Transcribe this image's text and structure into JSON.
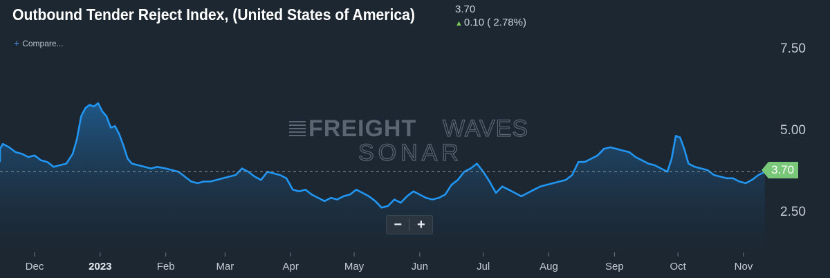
{
  "header": {
    "title": "Outbound Tender Reject Index, (United States of America)",
    "current_value": "3.70",
    "change_value": "0.10",
    "change_pct": "( 2.78%)",
    "change_direction": "up",
    "compare_label": "Compare..."
  },
  "watermark": {
    "brand_bold": "FREIGHT",
    "brand_light": "WAVES",
    "product": "SONAR"
  },
  "zoom": {
    "minus": "−",
    "plus": "+"
  },
  "colors": {
    "background": "#1c2732",
    "line": "#2196f3",
    "area_top": "#1f5a8c",
    "last_value_flag": "#79c87a",
    "up_arrow": "#7ec85a"
  },
  "chart_data": {
    "type": "area",
    "title": "Outbound Tender Reject Index, (United States of America)",
    "xlabel": "",
    "ylabel": "",
    "ylim": [
      1.2,
      9.0
    ],
    "y_ticks": [
      7.5,
      5.0,
      2.5
    ],
    "y_tick_labels": [
      "7.50",
      "5.00",
      "2.50"
    ],
    "x_ticks": [
      "Dec",
      "2023",
      "Feb",
      "Mar",
      "Apr",
      "May",
      "Jun",
      "Jul",
      "Aug",
      "Sep",
      "Oct",
      "Nov"
    ],
    "x_tick_dates": [
      "2022-12-01",
      "2023-01-01",
      "2023-02-01",
      "2023-03-01",
      "2023-04-01",
      "2023-05-01",
      "2023-06-01",
      "2023-07-01",
      "2023-08-01",
      "2023-09-01",
      "2023-10-01",
      "2023-11-01"
    ],
    "last_value": 3.7,
    "last_value_line": "dashed",
    "grid": false,
    "series": [
      {
        "values": [
          [
            "2022-11-10",
            4.0
          ],
          [
            "2022-11-13",
            4.4
          ],
          [
            "2022-11-16",
            4.55
          ],
          [
            "2022-11-19",
            4.45
          ],
          [
            "2022-11-22",
            4.3
          ],
          [
            "2022-11-25",
            4.25
          ],
          [
            "2022-11-28",
            4.15
          ],
          [
            "2022-12-01",
            4.2
          ],
          [
            "2022-12-04",
            4.05
          ],
          [
            "2022-12-07",
            4.0
          ],
          [
            "2022-12-10",
            3.85
          ],
          [
            "2022-12-13",
            3.9
          ],
          [
            "2022-12-16",
            3.95
          ],
          [
            "2022-12-19",
            4.25
          ],
          [
            "2022-12-21",
            4.7
          ],
          [
            "2022-12-23",
            5.4
          ],
          [
            "2022-12-25",
            5.65
          ],
          [
            "2022-12-27",
            5.75
          ],
          [
            "2022-12-29",
            5.7
          ],
          [
            "2022-12-31",
            5.8
          ],
          [
            "2023-01-02",
            5.55
          ],
          [
            "2023-01-04",
            5.4
          ],
          [
            "2023-01-06",
            5.05
          ],
          [
            "2023-01-08",
            5.1
          ],
          [
            "2023-01-10",
            4.85
          ],
          [
            "2023-01-12",
            4.5
          ],
          [
            "2023-01-14",
            4.1
          ],
          [
            "2023-01-16",
            3.95
          ],
          [
            "2023-01-19",
            3.9
          ],
          [
            "2023-01-22",
            3.85
          ],
          [
            "2023-01-25",
            3.8
          ],
          [
            "2023-01-28",
            3.85
          ],
          [
            "2023-02-01",
            3.8
          ],
          [
            "2023-02-04",
            3.75
          ],
          [
            "2023-02-07",
            3.7
          ],
          [
            "2023-02-10",
            3.55
          ],
          [
            "2023-02-13",
            3.4
          ],
          [
            "2023-02-16",
            3.35
          ],
          [
            "2023-02-19",
            3.4
          ],
          [
            "2023-02-22",
            3.4
          ],
          [
            "2023-02-25",
            3.45
          ],
          [
            "2023-02-28",
            3.5
          ],
          [
            "2023-03-03",
            3.55
          ],
          [
            "2023-03-06",
            3.6
          ],
          [
            "2023-03-09",
            3.8
          ],
          [
            "2023-03-12",
            3.7
          ],
          [
            "2023-03-15",
            3.55
          ],
          [
            "2023-03-18",
            3.45
          ],
          [
            "2023-03-21",
            3.7
          ],
          [
            "2023-03-24",
            3.65
          ],
          [
            "2023-03-27",
            3.6
          ],
          [
            "2023-03-30",
            3.5
          ],
          [
            "2023-04-02",
            3.15
          ],
          [
            "2023-04-05",
            3.1
          ],
          [
            "2023-04-08",
            3.15
          ],
          [
            "2023-04-11",
            3.0
          ],
          [
            "2023-04-14",
            2.9
          ],
          [
            "2023-04-17",
            2.8
          ],
          [
            "2023-04-20",
            2.9
          ],
          [
            "2023-04-23",
            2.85
          ],
          [
            "2023-04-26",
            2.95
          ],
          [
            "2023-04-29",
            3.0
          ],
          [
            "2023-05-02",
            3.15
          ],
          [
            "2023-05-05",
            3.05
          ],
          [
            "2023-05-08",
            2.95
          ],
          [
            "2023-05-11",
            2.8
          ],
          [
            "2023-05-14",
            2.6
          ],
          [
            "2023-05-17",
            2.65
          ],
          [
            "2023-05-20",
            2.85
          ],
          [
            "2023-05-23",
            2.75
          ],
          [
            "2023-05-26",
            2.95
          ],
          [
            "2023-05-29",
            3.1
          ],
          [
            "2023-06-01",
            3.0
          ],
          [
            "2023-06-04",
            2.9
          ],
          [
            "2023-06-07",
            2.85
          ],
          [
            "2023-06-10",
            2.9
          ],
          [
            "2023-06-13",
            3.0
          ],
          [
            "2023-06-16",
            3.3
          ],
          [
            "2023-06-19",
            3.45
          ],
          [
            "2023-06-22",
            3.7
          ],
          [
            "2023-06-25",
            3.8
          ],
          [
            "2023-06-28",
            3.95
          ],
          [
            "2023-07-01",
            3.7
          ],
          [
            "2023-07-04",
            3.4
          ],
          [
            "2023-07-07",
            3.05
          ],
          [
            "2023-07-10",
            3.25
          ],
          [
            "2023-07-13",
            3.15
          ],
          [
            "2023-07-16",
            3.05
          ],
          [
            "2023-07-19",
            2.95
          ],
          [
            "2023-07-22",
            3.05
          ],
          [
            "2023-07-25",
            3.15
          ],
          [
            "2023-07-28",
            3.25
          ],
          [
            "2023-07-31",
            3.3
          ],
          [
            "2023-08-03",
            3.35
          ],
          [
            "2023-08-06",
            3.4
          ],
          [
            "2023-08-09",
            3.45
          ],
          [
            "2023-08-12",
            3.6
          ],
          [
            "2023-08-15",
            4.0
          ],
          [
            "2023-08-18",
            4.0
          ],
          [
            "2023-08-21",
            4.1
          ],
          [
            "2023-08-24",
            4.2
          ],
          [
            "2023-08-27",
            4.4
          ],
          [
            "2023-08-30",
            4.45
          ],
          [
            "2023-09-02",
            4.4
          ],
          [
            "2023-09-05",
            4.35
          ],
          [
            "2023-09-08",
            4.3
          ],
          [
            "2023-09-11",
            4.15
          ],
          [
            "2023-09-14",
            4.05
          ],
          [
            "2023-09-17",
            3.95
          ],
          [
            "2023-09-20",
            3.9
          ],
          [
            "2023-09-23",
            3.8
          ],
          [
            "2023-09-26",
            3.7
          ],
          [
            "2023-09-28",
            4.1
          ],
          [
            "2023-09-30",
            4.8
          ],
          [
            "2023-10-02",
            4.75
          ],
          [
            "2023-10-04",
            4.4
          ],
          [
            "2023-10-06",
            3.95
          ],
          [
            "2023-10-09",
            3.85
          ],
          [
            "2023-10-12",
            3.8
          ],
          [
            "2023-10-15",
            3.75
          ],
          [
            "2023-10-18",
            3.6
          ],
          [
            "2023-10-21",
            3.55
          ],
          [
            "2023-10-24",
            3.5
          ],
          [
            "2023-10-27",
            3.5
          ],
          [
            "2023-10-30",
            3.4
          ],
          [
            "2023-11-02",
            3.35
          ],
          [
            "2023-11-05",
            3.45
          ],
          [
            "2023-11-08",
            3.6
          ],
          [
            "2023-11-11",
            3.7
          ]
        ]
      }
    ]
  }
}
